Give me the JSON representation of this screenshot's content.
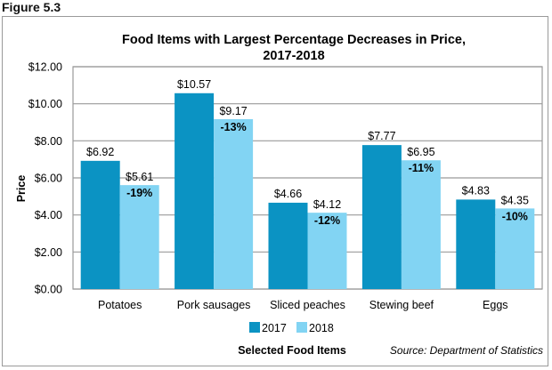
{
  "figure_label": "Figure 5.3",
  "chart_data": {
    "type": "bar",
    "title": "Food Items with Largest Percentage Decreases in Price,",
    "title_line2": "2017-2018",
    "xlabel": "Selected Food Items",
    "ylabel": "Price",
    "ylim": [
      0,
      12
    ],
    "yticks": [
      0,
      2,
      4,
      6,
      8,
      10,
      12
    ],
    "ytick_labels": [
      "$0.00",
      "$2.00",
      "$4.00",
      "$6.00",
      "$8.00",
      "$10.00",
      "$12.00"
    ],
    "grid": true,
    "legend_position": "bottom-center",
    "categories": [
      "Potatoes",
      "Pork sausages",
      "Sliced peaches",
      "Stewing beef",
      "Eggs"
    ],
    "series": [
      {
        "name": "2017",
        "color": "#0b93c3",
        "values": [
          6.92,
          10.57,
          4.66,
          7.77,
          4.83
        ],
        "labels": [
          "$6.92",
          "$10.57",
          "$4.66",
          "$7.77",
          "$4.83"
        ]
      },
      {
        "name": "2018",
        "color": "#82d4f3",
        "values": [
          5.61,
          9.17,
          4.12,
          6.95,
          4.35
        ],
        "labels": [
          "$5.61",
          "$9.17",
          "$4.12",
          "$6.95",
          "$4.35"
        ]
      }
    ],
    "percent_change": [
      "-19%",
      "-13%",
      "-12%",
      "-11%",
      "-10%"
    ],
    "source": "Source: Department of Statistics"
  }
}
